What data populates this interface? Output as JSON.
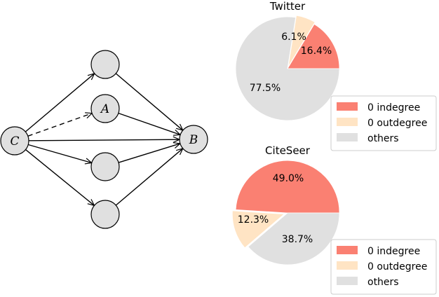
{
  "diagram": {
    "nodes": [
      {
        "id": "C",
        "label": "C"
      },
      {
        "id": "n1",
        "label": ""
      },
      {
        "id": "A",
        "label": "A"
      },
      {
        "id": "n3",
        "label": ""
      },
      {
        "id": "n4",
        "label": ""
      },
      {
        "id": "B",
        "label": "B"
      }
    ],
    "edges": [
      {
        "from": "C",
        "to": "n1",
        "style": "solid"
      },
      {
        "from": "C",
        "to": "A",
        "style": "dashed"
      },
      {
        "from": "C",
        "to": "B",
        "style": "solid"
      },
      {
        "from": "C",
        "to": "n3",
        "style": "solid"
      },
      {
        "from": "C",
        "to": "n4",
        "style": "solid"
      },
      {
        "from": "n1",
        "to": "B",
        "style": "solid"
      },
      {
        "from": "A",
        "to": "B",
        "style": "solid"
      },
      {
        "from": "n3",
        "to": "B",
        "style": "solid"
      },
      {
        "from": "n4",
        "to": "B",
        "style": "solid"
      }
    ],
    "node_fill": "#e0e0e0"
  },
  "chart_data": [
    {
      "type": "pie",
      "title": "Twitter",
      "slices": [
        {
          "label": "0 indegree",
          "value": 16.4,
          "display": "16.4%",
          "color": "#fa8072"
        },
        {
          "label": "0 outdegree",
          "value": 6.1,
          "display": "6.1%",
          "color": "#ffe4c4"
        },
        {
          "label": "others",
          "value": 77.5,
          "display": "77.5%",
          "color": "#e0e0e0"
        }
      ],
      "legend": {
        "placement": "bottom-right",
        "entries": [
          "0 indegree",
          "0 outdegree",
          "others"
        ]
      }
    },
    {
      "type": "pie",
      "title": "CiteSeer",
      "slices": [
        {
          "label": "0 indegree",
          "value": 49.0,
          "display": "49.0%",
          "color": "#fa8072"
        },
        {
          "label": "0 outdegree",
          "value": 12.3,
          "display": "12.3%",
          "color": "#ffe4c4"
        },
        {
          "label": "others",
          "value": 38.7,
          "display": "38.7%",
          "color": "#e0e0e0"
        }
      ],
      "legend": {
        "placement": "bottom-right",
        "entries": [
          "0 indegree",
          "0 outdegree",
          "others"
        ]
      }
    }
  ]
}
